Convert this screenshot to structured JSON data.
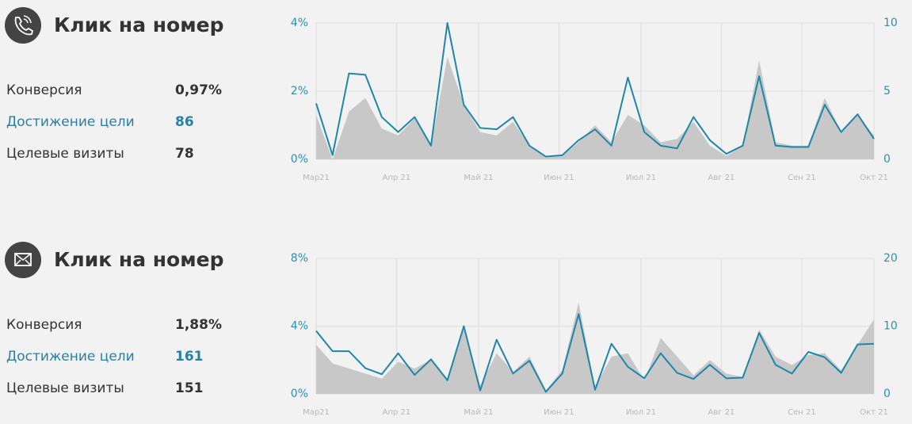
{
  "panels": [
    {
      "title": "Клик на номер",
      "stats": [
        {
          "label": "Конверсия",
          "value": "0,97%"
        },
        {
          "label": "Достижение цели",
          "value": "86"
        },
        {
          "label": "Целевые визиты",
          "value": "78"
        }
      ]
    },
    {
      "title": "Клик на номер",
      "stats": [
        {
          "label": "Конверсия",
          "value": "1,88%"
        },
        {
          "label": "Достижение цели",
          "value": "161"
        },
        {
          "label": "Целевые визиты",
          "value": "151"
        }
      ]
    }
  ],
  "chart_data": [
    {
      "type": "line",
      "x": [
        0,
        1,
        2,
        3,
        4,
        5,
        6,
        7,
        8,
        9,
        10,
        11,
        12,
        13,
        14,
        15,
        16,
        17,
        18,
        19,
        20,
        21,
        22,
        23,
        24,
        25,
        26,
        27,
        28,
        29,
        30,
        31,
        32,
        33,
        34
      ],
      "xlim": [
        0,
        34
      ],
      "xticks": [
        {
          "value": 0,
          "label": "Мар21"
        },
        {
          "value": 4.9,
          "label": "Апр 21"
        },
        {
          "value": 9.9,
          "label": "Май 21"
        },
        {
          "value": 14.8,
          "label": "Июн 21"
        },
        {
          "value": 19.8,
          "label": "Июл 21"
        },
        {
          "value": 24.7,
          "label": "Авг 21"
        },
        {
          "value": 29.6,
          "label": "Сен 21"
        },
        {
          "value": 34,
          "label": "Окт 21"
        }
      ],
      "ylim": [
        0,
        4
      ],
      "yticks": [
        {
          "value": 0,
          "label": "0%"
        },
        {
          "value": 2,
          "label": "2%"
        },
        {
          "value": 4,
          "label": "4%"
        }
      ],
      "y2lim": [
        0,
        10
      ],
      "y2ticks": [
        0,
        5,
        10
      ],
      "grid": true,
      "series": [
        {
          "color": "#c8c8c8",
          "values": [
            1.3,
            0.0,
            1.4,
            1.8,
            0.9,
            0.7,
            1.2,
            0.4,
            3.0,
            1.6,
            0.8,
            0.7,
            1.1,
            0.4,
            0.1,
            0.1,
            0.5,
            1.0,
            0.5,
            1.3,
            1.0,
            0.5,
            0.6,
            1.1,
            0.4,
            0.1,
            0.4,
            2.9,
            0.5,
            0.4,
            0.4,
            1.8,
            0.8,
            1.3,
            0.7
          ]
        },
        {
          "color": "#1f86a8",
          "axis": "y2",
          "values": [
            4.1,
            0.3,
            6.3,
            6.2,
            3.1,
            2.0,
            3.1,
            1.0,
            10,
            4.0,
            2.3,
            2.2,
            3.1,
            1.0,
            0.2,
            0.3,
            1.4,
            2.2,
            1.0,
            6.0,
            2.0,
            1.0,
            0.8,
            3.1,
            1.4,
            0.4,
            1.0,
            6.1,
            1.0,
            0.9,
            0.9,
            4.0,
            2.0,
            3.3,
            1.5
          ]
        }
      ]
    },
    {
      "type": "line",
      "x": [
        0,
        1,
        2,
        3,
        4,
        5,
        6,
        7,
        8,
        9,
        10,
        11,
        12,
        13,
        14,
        15,
        16,
        17,
        18,
        19,
        20,
        21,
        22,
        23,
        24,
        25,
        26,
        27,
        28,
        29,
        30,
        31,
        32,
        33,
        34
      ],
      "xlim": [
        0,
        34
      ],
      "xticks": [
        {
          "value": 0,
          "label": "Мар21"
        },
        {
          "value": 4.9,
          "label": "Апр 21"
        },
        {
          "value": 9.9,
          "label": "Май 21"
        },
        {
          "value": 14.8,
          "label": "Июн 21"
        },
        {
          "value": 19.8,
          "label": "Июл 21"
        },
        {
          "value": 24.7,
          "label": "Авг 21"
        },
        {
          "value": 29.6,
          "label": "Сен 21"
        },
        {
          "value": 34,
          "label": "Окт 21"
        }
      ],
      "ylim": [
        0,
        8
      ],
      "yticks": [
        {
          "value": 0,
          "label": "0%"
        },
        {
          "value": 4,
          "label": "4%"
        },
        {
          "value": 8,
          "label": "8%"
        }
      ],
      "y2lim": [
        0,
        20
      ],
      "y2ticks": [
        0,
        10,
        20
      ],
      "grid": true,
      "series": [
        {
          "color": "#c8c8c8",
          "values": [
            2.9,
            1.8,
            1.5,
            1.2,
            0.9,
            1.9,
            1.5,
            2.0,
            0.9,
            3.9,
            0.5,
            2.4,
            1.3,
            2.2,
            0.2,
            1.4,
            5.4,
            0.4,
            2.2,
            2.4,
            0.8,
            3.3,
            2.2,
            1.1,
            2.0,
            1.2,
            1.0,
            3.8,
            2.2,
            1.7,
            2.3,
            2.4,
            1.4,
            2.9,
            4.4
          ]
        },
        {
          "color": "#1f86a8",
          "axis": "y2",
          "values": [
            9.3,
            6.3,
            6.3,
            3.8,
            2.9,
            6.0,
            2.8,
            5.1,
            2.0,
            10.0,
            0.5,
            8.0,
            3.0,
            4.9,
            0.3,
            3.0,
            11.8,
            0.6,
            7.4,
            4.0,
            2.3,
            6.0,
            3.1,
            2.2,
            4.3,
            2.3,
            2.4,
            9.0,
            4.3,
            3.0,
            6.2,
            5.4,
            3.1,
            7.3,
            7.4
          ]
        }
      ]
    }
  ]
}
